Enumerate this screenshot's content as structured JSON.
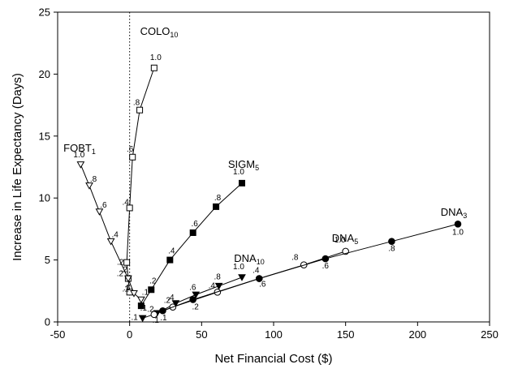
{
  "chart_data": {
    "type": "line",
    "xlabel": "Net Financial Cost ($)",
    "ylabel": "Increase in Life Expectancy (Days)",
    "xlim": [
      -50,
      250
    ],
    "ylim": [
      0,
      25
    ],
    "xticks": [
      -50,
      0,
      50,
      100,
      150,
      200,
      250
    ],
    "yticks": [
      0,
      5,
      10,
      15,
      20,
      25
    ],
    "xtick_labels": [
      "-50",
      "0",
      "50",
      "100",
      "150",
      "200",
      "250"
    ],
    "ytick_labels": [
      "0",
      "5",
      "10",
      "15",
      "20",
      "25"
    ],
    "grid": false,
    "reference_line": {
      "x": 0,
      "style": "dotted"
    },
    "series": [
      {
        "name": "COLO",
        "name_sub": "10",
        "marker": "square-open",
        "x": [
          0,
          -1,
          -2,
          0,
          2,
          7,
          17
        ],
        "y": [
          2.4,
          3.5,
          4.8,
          9.2,
          13.3,
          17.1,
          20.5
        ],
        "point_labels": [
          ".1",
          ".2",
          ".2",
          ".4",
          ".6",
          ".8",
          "1.0"
        ]
      },
      {
        "name": "FOBT",
        "name_sub": "1",
        "marker": "triangle-down-open",
        "x": [
          -34,
          -28,
          -21,
          -13,
          -1,
          3,
          8
        ],
        "y": [
          12.7,
          11.0,
          8.9,
          6.5,
          3.5,
          2.3,
          1.8
        ],
        "point_labels": [
          "1.0",
          ".8",
          ".6",
          ".4",
          ".2",
          ".1",
          ".1"
        ]
      },
      {
        "name": "SIGM",
        "name_sub": "5",
        "marker": "square-filled",
        "x": [
          8,
          15,
          28,
          44,
          60,
          78
        ],
        "y": [
          1.3,
          2.6,
          5.0,
          7.2,
          9.3,
          11.2
        ],
        "point_labels": [
          ".1",
          ".2",
          ".4",
          ".6",
          ".8",
          "1.0"
        ]
      },
      {
        "name": "DNA",
        "name_sub": "10",
        "marker": "triangle-down-filled",
        "x": [
          9,
          19,
          32,
          46,
          62,
          78
        ],
        "y": [
          0.3,
          0.7,
          1.5,
          2.2,
          2.9,
          3.6
        ],
        "point_labels": [
          ".1",
          ".2",
          ".4",
          ".6",
          ".8",
          "1.0"
        ]
      },
      {
        "name": "DNA",
        "name_sub": "5",
        "marker": "circle-open",
        "x": [
          17,
          30,
          61,
          90,
          121,
          150
        ],
        "y": [
          0.6,
          1.2,
          2.4,
          3.5,
          4.6,
          5.7
        ],
        "point_labels": [
          ".1",
          ".2",
          ".4",
          ".6",
          ".8",
          "1.0"
        ]
      },
      {
        "name": "DNA",
        "name_sub": "3",
        "marker": "circle-filled",
        "x": [
          23,
          44,
          90,
          136,
          182,
          228
        ],
        "y": [
          0.9,
          1.8,
          3.5,
          5.1,
          6.5,
          7.9
        ],
        "point_labels": [
          ".1",
          ".2",
          ".4",
          ".6",
          ".8",
          "1.0"
        ]
      }
    ]
  }
}
